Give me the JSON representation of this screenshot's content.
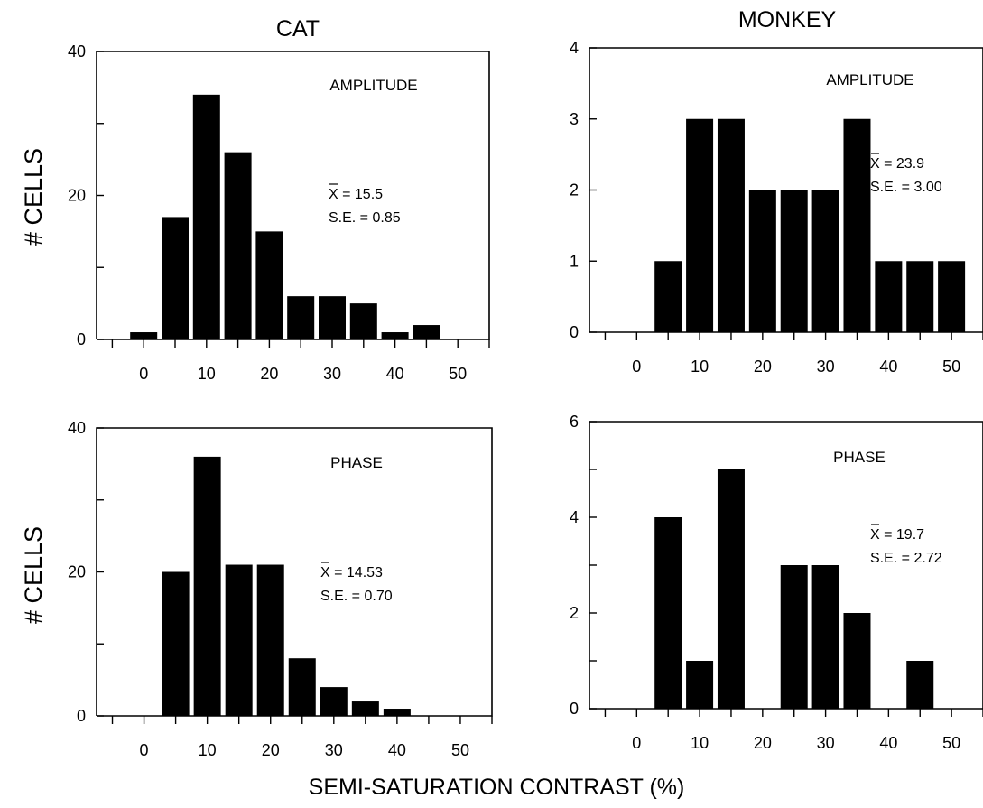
{
  "figure": {
    "column_titles": [
      "CAT",
      "MONKEY"
    ],
    "y_axis_label": "# CELLS",
    "x_axis_label": "SEMI-SATURATION CONTRAST (%)"
  },
  "chart_data": [
    {
      "type": "bar",
      "group": "CAT",
      "annotation": "AMPLITUDE",
      "stats": {
        "mean": "X = 15.5",
        "se": "S.E. = 0.85"
      },
      "x": [
        0,
        5,
        10,
        15,
        20,
        25,
        30,
        35,
        40,
        45
      ],
      "values": [
        1,
        17,
        34,
        26,
        15,
        6,
        6,
        5,
        1,
        2
      ],
      "xlim": [
        -7.5,
        55
      ],
      "ylim": [
        0,
        40
      ],
      "xticks": [
        0,
        10,
        20,
        30,
        40,
        50
      ],
      "yticks": [
        0,
        20,
        40
      ],
      "yminor": [
        10,
        30
      ],
      "xlabel": "",
      "ylabel": "# CELLS"
    },
    {
      "type": "bar",
      "group": "MONKEY",
      "annotation": "AMPLITUDE",
      "stats": {
        "mean": "X = 23.9",
        "se": "S.E. = 3.00"
      },
      "x": [
        5,
        10,
        15,
        20,
        25,
        30,
        35,
        40,
        45,
        50
      ],
      "values": [
        1,
        3,
        3,
        2,
        2,
        2,
        3,
        1,
        1,
        1
      ],
      "xlim": [
        -7.5,
        55
      ],
      "ylim": [
        0,
        4
      ],
      "xticks": [
        0,
        10,
        20,
        30,
        40,
        50
      ],
      "yticks": [
        0,
        1,
        2,
        3,
        4
      ],
      "yminor": [],
      "xlabel": "",
      "ylabel": ""
    },
    {
      "type": "bar",
      "group": "CAT",
      "annotation": "PHASE",
      "stats": {
        "mean": "X = 14.53",
        "se": "S.E. = 0.70"
      },
      "x": [
        5,
        10,
        15,
        20,
        25,
        30,
        35,
        40
      ],
      "values": [
        20,
        36,
        21,
        21,
        8,
        4,
        2,
        1
      ],
      "xlim": [
        -7.5,
        55
      ],
      "ylim": [
        0,
        40
      ],
      "xticks": [
        0,
        10,
        20,
        30,
        40,
        50
      ],
      "yticks": [
        0,
        20,
        40
      ],
      "yminor": [
        10,
        30
      ],
      "xlabel": "SEMI-SATURATION CONTRAST (%)",
      "ylabel": "# CELLS"
    },
    {
      "type": "bar",
      "group": "MONKEY",
      "annotation": "PHASE",
      "stats": {
        "mean": "X = 19.7",
        "se": "S.E. = 2.72"
      },
      "x": [
        5,
        10,
        15,
        25,
        30,
        35,
        45
      ],
      "values": [
        4,
        1,
        5,
        3,
        3,
        2,
        1
      ],
      "xlim": [
        -7.5,
        55
      ],
      "ylim": [
        0,
        6
      ],
      "xticks": [
        0,
        10,
        20,
        30,
        40,
        50
      ],
      "yticks": [
        0,
        2,
        4,
        6
      ],
      "yminor": [
        1,
        3,
        5
      ],
      "xlabel": "SEMI-SATURATION CONTRAST (%)",
      "ylabel": ""
    }
  ]
}
